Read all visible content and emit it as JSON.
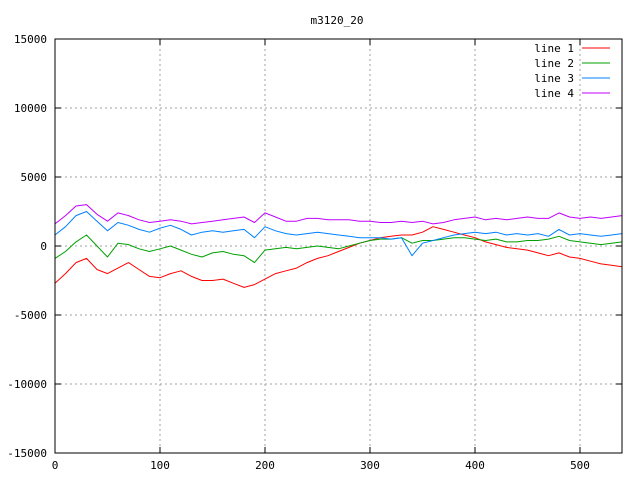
{
  "chart_data": {
    "type": "line",
    "title": "m3120_20",
    "xlabel": "",
    "ylabel": "",
    "xlim": [
      0,
      540
    ],
    "ylim": [
      -15000,
      15000
    ],
    "x_ticks": [
      0,
      100,
      200,
      300,
      400,
      500
    ],
    "y_ticks": [
      -15000,
      -10000,
      -5000,
      0,
      5000,
      10000,
      15000
    ],
    "grid": true,
    "legend_position": "top-right",
    "x": [
      0,
      10,
      20,
      30,
      40,
      50,
      60,
      70,
      80,
      90,
      100,
      110,
      120,
      130,
      140,
      150,
      160,
      170,
      180,
      190,
      200,
      210,
      220,
      230,
      240,
      250,
      260,
      270,
      280,
      290,
      300,
      310,
      320,
      330,
      340,
      350,
      360,
      370,
      380,
      390,
      400,
      410,
      420,
      430,
      440,
      450,
      460,
      470,
      480,
      490,
      500,
      510,
      520,
      530,
      540
    ],
    "series": [
      {
        "name": "line 1",
        "color": "#ff0000",
        "values": [
          -2700,
          -2000,
          -1200,
          -900,
          -1700,
          -2000,
          -1600,
          -1200,
          -1700,
          -2200,
          -2300,
          -2000,
          -1800,
          -2200,
          -2500,
          -2500,
          -2400,
          -2700,
          -3000,
          -2800,
          -2400,
          -2000,
          -1800,
          -1600,
          -1200,
          -900,
          -700,
          -400,
          -100,
          200,
          400,
          600,
          700,
          800,
          800,
          1000,
          1400,
          1200,
          1000,
          800,
          600,
          300,
          100,
          -100,
          -200,
          -300,
          -500,
          -700,
          -500,
          -800,
          -900,
          -1100,
          -1300,
          -1400,
          -1500
        ]
      },
      {
        "name": "line 2",
        "color": "#00a000",
        "values": [
          -900,
          -400,
          300,
          800,
          0,
          -800,
          200,
          100,
          -200,
          -400,
          -200,
          0,
          -300,
          -600,
          -800,
          -500,
          -400,
          -600,
          -700,
          -1200,
          -300,
          -200,
          -100,
          -200,
          -100,
          0,
          -100,
          -200,
          0,
          200,
          400,
          500,
          500,
          600,
          200,
          400,
          400,
          500,
          600,
          600,
          500,
          400,
          500,
          300,
          300,
          400,
          400,
          500,
          700,
          400,
          300,
          200,
          100,
          200,
          300
        ]
      },
      {
        "name": "line 3",
        "color": "#0080ff",
        "values": [
          800,
          1400,
          2200,
          2500,
          1800,
          1100,
          1700,
          1500,
          1200,
          1000,
          1300,
          1500,
          1200,
          800,
          1000,
          1100,
          1000,
          1100,
          1200,
          600,
          1400,
          1100,
          900,
          800,
          900,
          1000,
          900,
          800,
          700,
          600,
          600,
          600,
          500,
          600,
          -700,
          200,
          400,
          600,
          800,
          900,
          1000,
          900,
          1000,
          800,
          900,
          800,
          900,
          700,
          1200,
          800,
          900,
          800,
          700,
          800,
          900
        ]
      },
      {
        "name": "line 4",
        "color": "#c000ff",
        "values": [
          1600,
          2200,
          2900,
          3000,
          2300,
          1800,
          2400,
          2200,
          1900,
          1700,
          1800,
          1900,
          1800,
          1600,
          1700,
          1800,
          1900,
          2000,
          2100,
          1700,
          2400,
          2100,
          1800,
          1800,
          2000,
          2000,
          1900,
          1900,
          1900,
          1800,
          1800,
          1700,
          1700,
          1800,
          1700,
          1800,
          1600,
          1700,
          1900,
          2000,
          2100,
          1900,
          2000,
          1900,
          2000,
          2100,
          2000,
          2000,
          2400,
          2100,
          2000,
          2100,
          2000,
          2100,
          2200
        ]
      }
    ]
  }
}
